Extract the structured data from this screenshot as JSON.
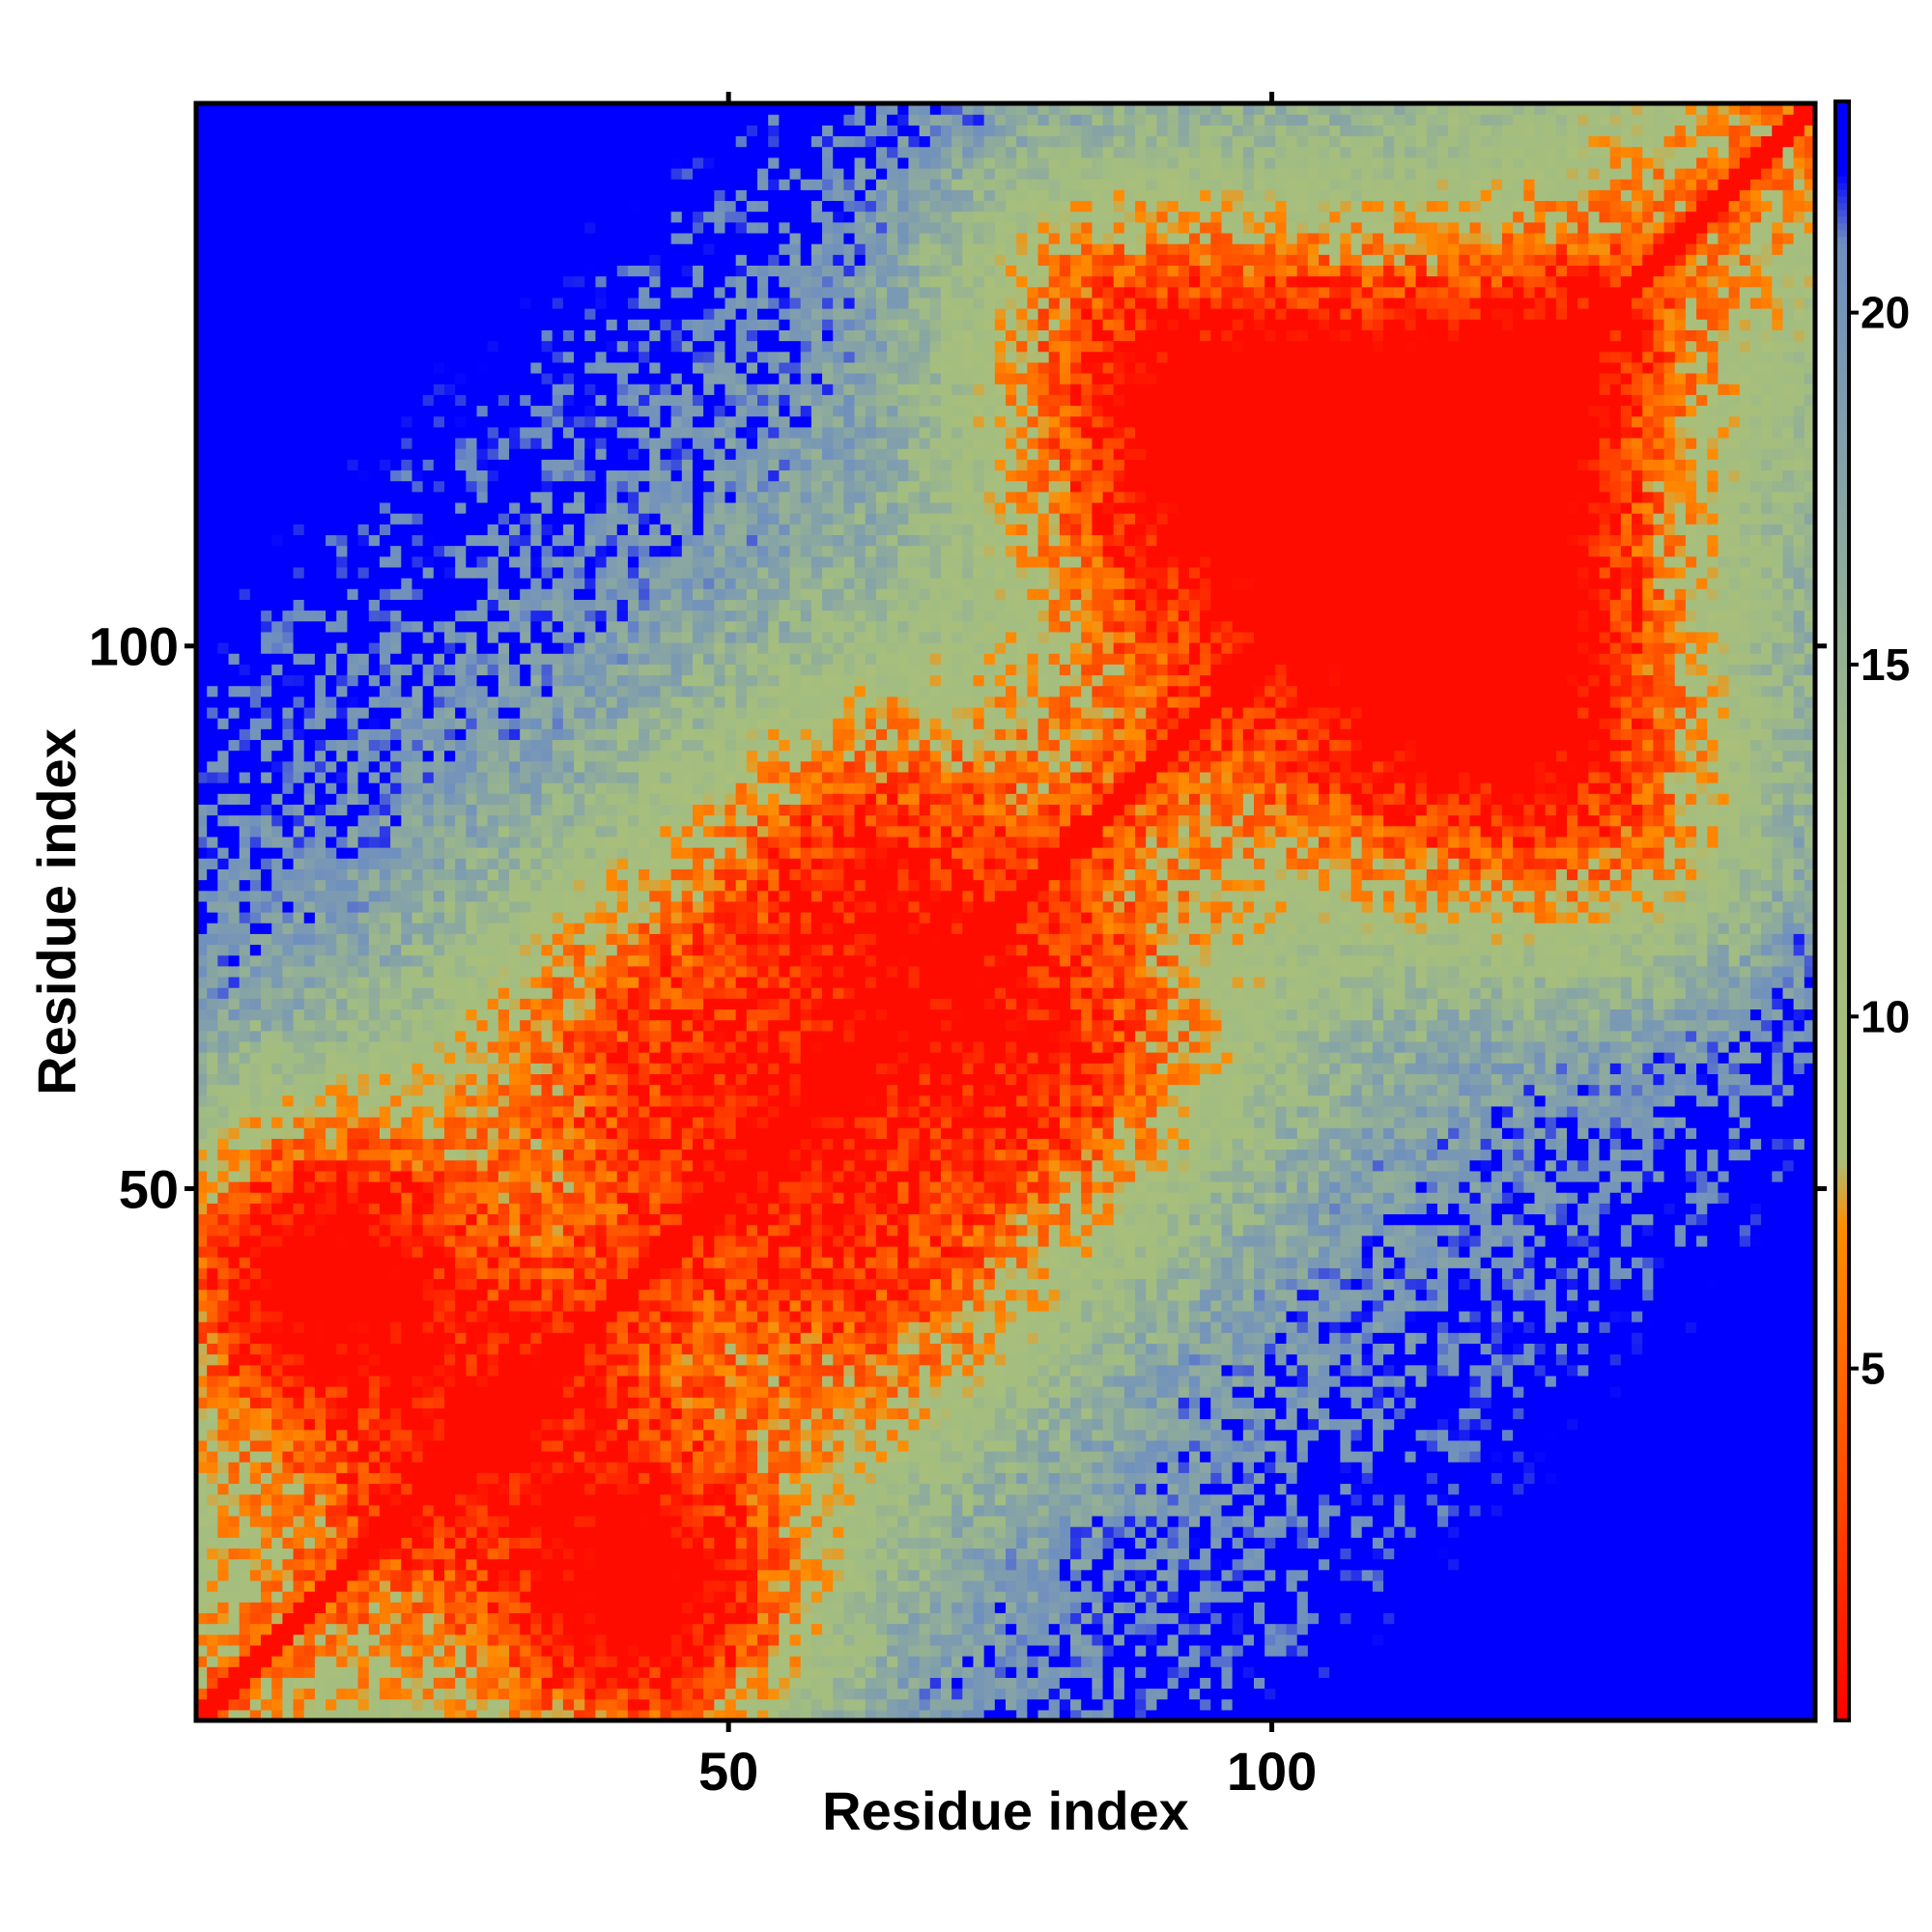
{
  "chart_data": {
    "type": "heatmap",
    "title": "",
    "xlabel": "Residue index",
    "ylabel": "Residue index",
    "n_residues": 150,
    "xlim": [
      1,
      150
    ],
    "ylim": [
      1,
      150
    ],
    "x_ticks": [
      50,
      100
    ],
    "y_ticks": [
      50,
      100
    ],
    "colorbar": {
      "range": [
        0,
        23
      ],
      "ticks": [
        5,
        10,
        15,
        20
      ],
      "colors": [
        {
          "at": 0,
          "color": "#ff0000"
        },
        {
          "at": 3,
          "color": "#ff4500"
        },
        {
          "at": 7,
          "color": "#ff8c00"
        },
        {
          "at": 8,
          "color": "#a9bf7a"
        },
        {
          "at": 13,
          "color": "#a2bd82"
        },
        {
          "at": 17,
          "color": "#8aa7a2"
        },
        {
          "at": 21,
          "color": "#6f8fbf"
        },
        {
          "at": 22,
          "color": "#0000ff"
        }
      ]
    },
    "grid": false,
    "legend": "colorbar-right",
    "symmetric": true,
    "description_note": ""
  }
}
